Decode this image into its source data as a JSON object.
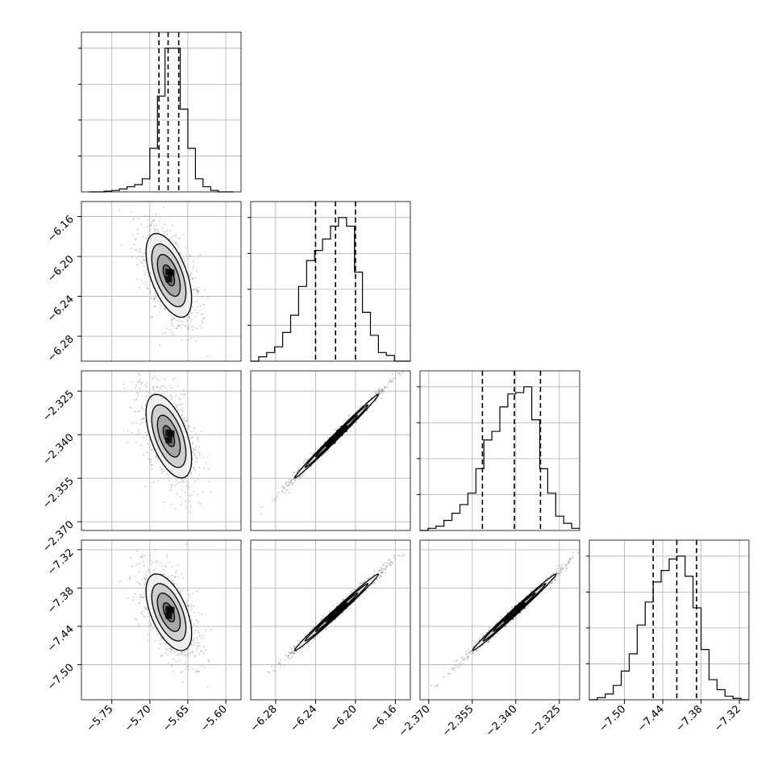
{
  "chart_data": {
    "type": "corner",
    "parameters": 4,
    "quantiles_shown": [
      0.16,
      0.5,
      0.84
    ],
    "grid": true,
    "axes": [
      {
        "range": [
          -5.79,
          -5.58
        ],
        "ticks": [
          -5.75,
          -5.7,
          -5.65,
          -5.6
        ],
        "tick_labels": [
          "−5.75",
          "−5.70",
          "−5.65",
          "−5.60"
        ]
      },
      {
        "range": [
          -6.305,
          -6.145
        ],
        "ticks": [
          -6.28,
          -6.24,
          -6.2,
          -6.16
        ],
        "tick_labels": [
          "−6.28",
          "−6.24",
          "−6.20",
          "−6.16"
        ]
      },
      {
        "range": [
          -2.373,
          -2.318
        ],
        "ticks": [
          -2.37,
          -2.355,
          -2.34,
          -2.325
        ],
        "tick_labels": [
          "−2.370",
          "−2.355",
          "−2.340",
          "−2.325"
        ]
      },
      {
        "range": [
          -7.555,
          -7.305
        ],
        "ticks": [
          -7.5,
          -7.44,
          -7.38,
          -7.32
        ],
        "tick_labels": [
          "−7.50",
          "−7.44",
          "−7.38",
          "−7.32"
        ]
      }
    ],
    "marginals": [
      {
        "bins": [
          -5.78,
          -5.77,
          -5.76,
          -5.75,
          -5.74,
          -5.73,
          -5.72,
          -5.71,
          -5.7,
          -5.69,
          -5.68,
          -5.67,
          -5.66,
          -5.65,
          -5.64,
          -5.63,
          -5.62,
          -5.61,
          -5.6,
          -5.59
        ],
        "counts": [
          0,
          0,
          0.005,
          0.01,
          0.02,
          0.035,
          0.05,
          0.09,
          0.3,
          0.66,
          0.99,
          0.99,
          0.57,
          0.3,
          0.09,
          0.035,
          0.01,
          0,
          0
        ],
        "quantiles": [
          -5.688,
          -5.676,
          -5.662
        ]
      },
      {
        "bins": [
          -6.305,
          -6.297,
          -6.289,
          -6.281,
          -6.273,
          -6.265,
          -6.257,
          -6.249,
          -6.241,
          -6.233,
          -6.225,
          -6.217,
          -6.209,
          -6.201,
          -6.193,
          -6.185,
          -6.177,
          -6.169,
          -6.161,
          -6.153,
          -6.145
        ],
        "counts": [
          0,
          0.03,
          0.06,
          0.1,
          0.2,
          0.32,
          0.52,
          0.7,
          0.77,
          0.85,
          0.94,
          1.0,
          0.94,
          0.62,
          0.34,
          0.18,
          0.06,
          0.04,
          0,
          0
        ],
        "quantiles": [
          -6.24,
          -6.22,
          -6.2
        ]
      },
      {
        "bins": [
          -2.373,
          -2.37025,
          -2.3675,
          -2.36475,
          -2.362,
          -2.35925,
          -2.3565,
          -2.35375,
          -2.351,
          -2.34825,
          -2.3455,
          -2.34275,
          -2.34,
          -2.33725,
          -2.3345,
          -2.33175,
          -2.329,
          -2.32625,
          -2.3235,
          -2.32075,
          -2.318
        ],
        "counts": [
          0,
          0.015,
          0.03,
          0.07,
          0.12,
          0.18,
          0.26,
          0.43,
          0.63,
          0.69,
          0.86,
          0.95,
          0.96,
          1.0,
          0.77,
          0.43,
          0.26,
          0.1,
          0.05,
          0.015
        ],
        "quantiles": [
          -2.3515,
          -2.3405,
          -2.3315
        ]
      },
      {
        "bins": [
          -7.555,
          -7.5425,
          -7.53,
          -7.5175,
          -7.505,
          -7.4925,
          -7.48,
          -7.4675,
          -7.455,
          -7.4425,
          -7.43,
          -7.4175,
          -7.405,
          -7.3925,
          -7.38,
          -7.3675,
          -7.355,
          -7.3425,
          -7.33,
          -7.3175,
          -7.305
        ],
        "counts": [
          0,
          0.015,
          0.04,
          0.1,
          0.2,
          0.32,
          0.52,
          0.68,
          0.82,
          0.9,
          0.98,
          1.0,
          0.86,
          0.64,
          0.35,
          0.14,
          0.07,
          0.025,
          0.01,
          0
        ],
        "quantiles": [
          -7.455,
          -7.418,
          -7.387
        ]
      }
    ],
    "pairs": [
      {
        "x": 0,
        "y": 1,
        "mean": [
          -5.675,
          -6.219
        ],
        "sd": [
          0.015,
          0.021
        ],
        "corr": -0.55
      },
      {
        "x": 0,
        "y": 2,
        "mean": [
          -5.675,
          -2.3405
        ],
        "sd": [
          0.015,
          0.0072
        ],
        "corr": -0.55
      },
      {
        "x": 1,
        "y": 2,
        "mean": [
          -6.219,
          -2.3405
        ],
        "sd": [
          0.021,
          0.0072
        ],
        "corr": 0.995
      },
      {
        "x": 0,
        "y": 3,
        "mean": [
          -5.675,
          -7.418
        ],
        "sd": [
          0.015,
          0.03
        ],
        "corr": -0.55
      },
      {
        "x": 1,
        "y": 3,
        "mean": [
          -6.219,
          -7.418
        ],
        "sd": [
          0.021,
          0.03
        ],
        "corr": 0.993
      },
      {
        "x": 2,
        "y": 3,
        "mean": [
          -2.3405,
          -7.418
        ],
        "sd": [
          0.0072,
          0.03
        ],
        "corr": 0.994
      }
    ],
    "colors": {
      "line": "#000000",
      "grid": "#b0b0b0",
      "point": "#7f7f7f",
      "density": "#000000"
    }
  }
}
